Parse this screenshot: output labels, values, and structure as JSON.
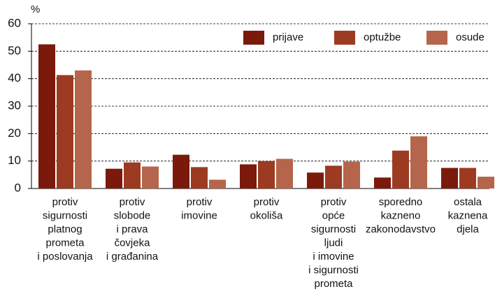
{
  "chart_data": {
    "type": "bar",
    "y_label": "%",
    "categories": [
      [
        "protiv",
        "sigurnosti",
        "platnog",
        "prometa",
        "i poslovanja"
      ],
      [
        "protiv",
        "slobode",
        "i prava",
        "čovjeka",
        "i građanina"
      ],
      [
        "protiv",
        "imovine"
      ],
      [
        "protiv",
        "okoliša"
      ],
      [
        "protiv",
        "opće",
        "sigurnosti",
        "ljudi",
        "i imovine",
        "i  sigurnosti",
        "prometa"
      ],
      [
        "sporedno",
        "kazneno",
        "zakonodavstvo"
      ],
      [
        "ostala",
        "kaznena",
        "djela"
      ]
    ],
    "series": [
      {
        "name": "prijave",
        "color": "#7b1a0c",
        "values": [
          52.5,
          7.2,
          12.3,
          8.8,
          5.8,
          4.0,
          7.5
        ]
      },
      {
        "name": "optužbe",
        "color": "#9c3b22",
        "values": [
          41.3,
          9.5,
          7.8,
          10.0,
          8.3,
          13.8,
          7.5
        ]
      },
      {
        "name": "osude",
        "color": "#b5654b",
        "values": [
          43.0,
          8.0,
          3.2,
          10.8,
          9.8,
          19.0,
          4.3
        ]
      }
    ],
    "ylim": [
      0,
      60
    ],
    "yticks": [
      0,
      10,
      20,
      30,
      40,
      50,
      60
    ],
    "grid": true
  }
}
